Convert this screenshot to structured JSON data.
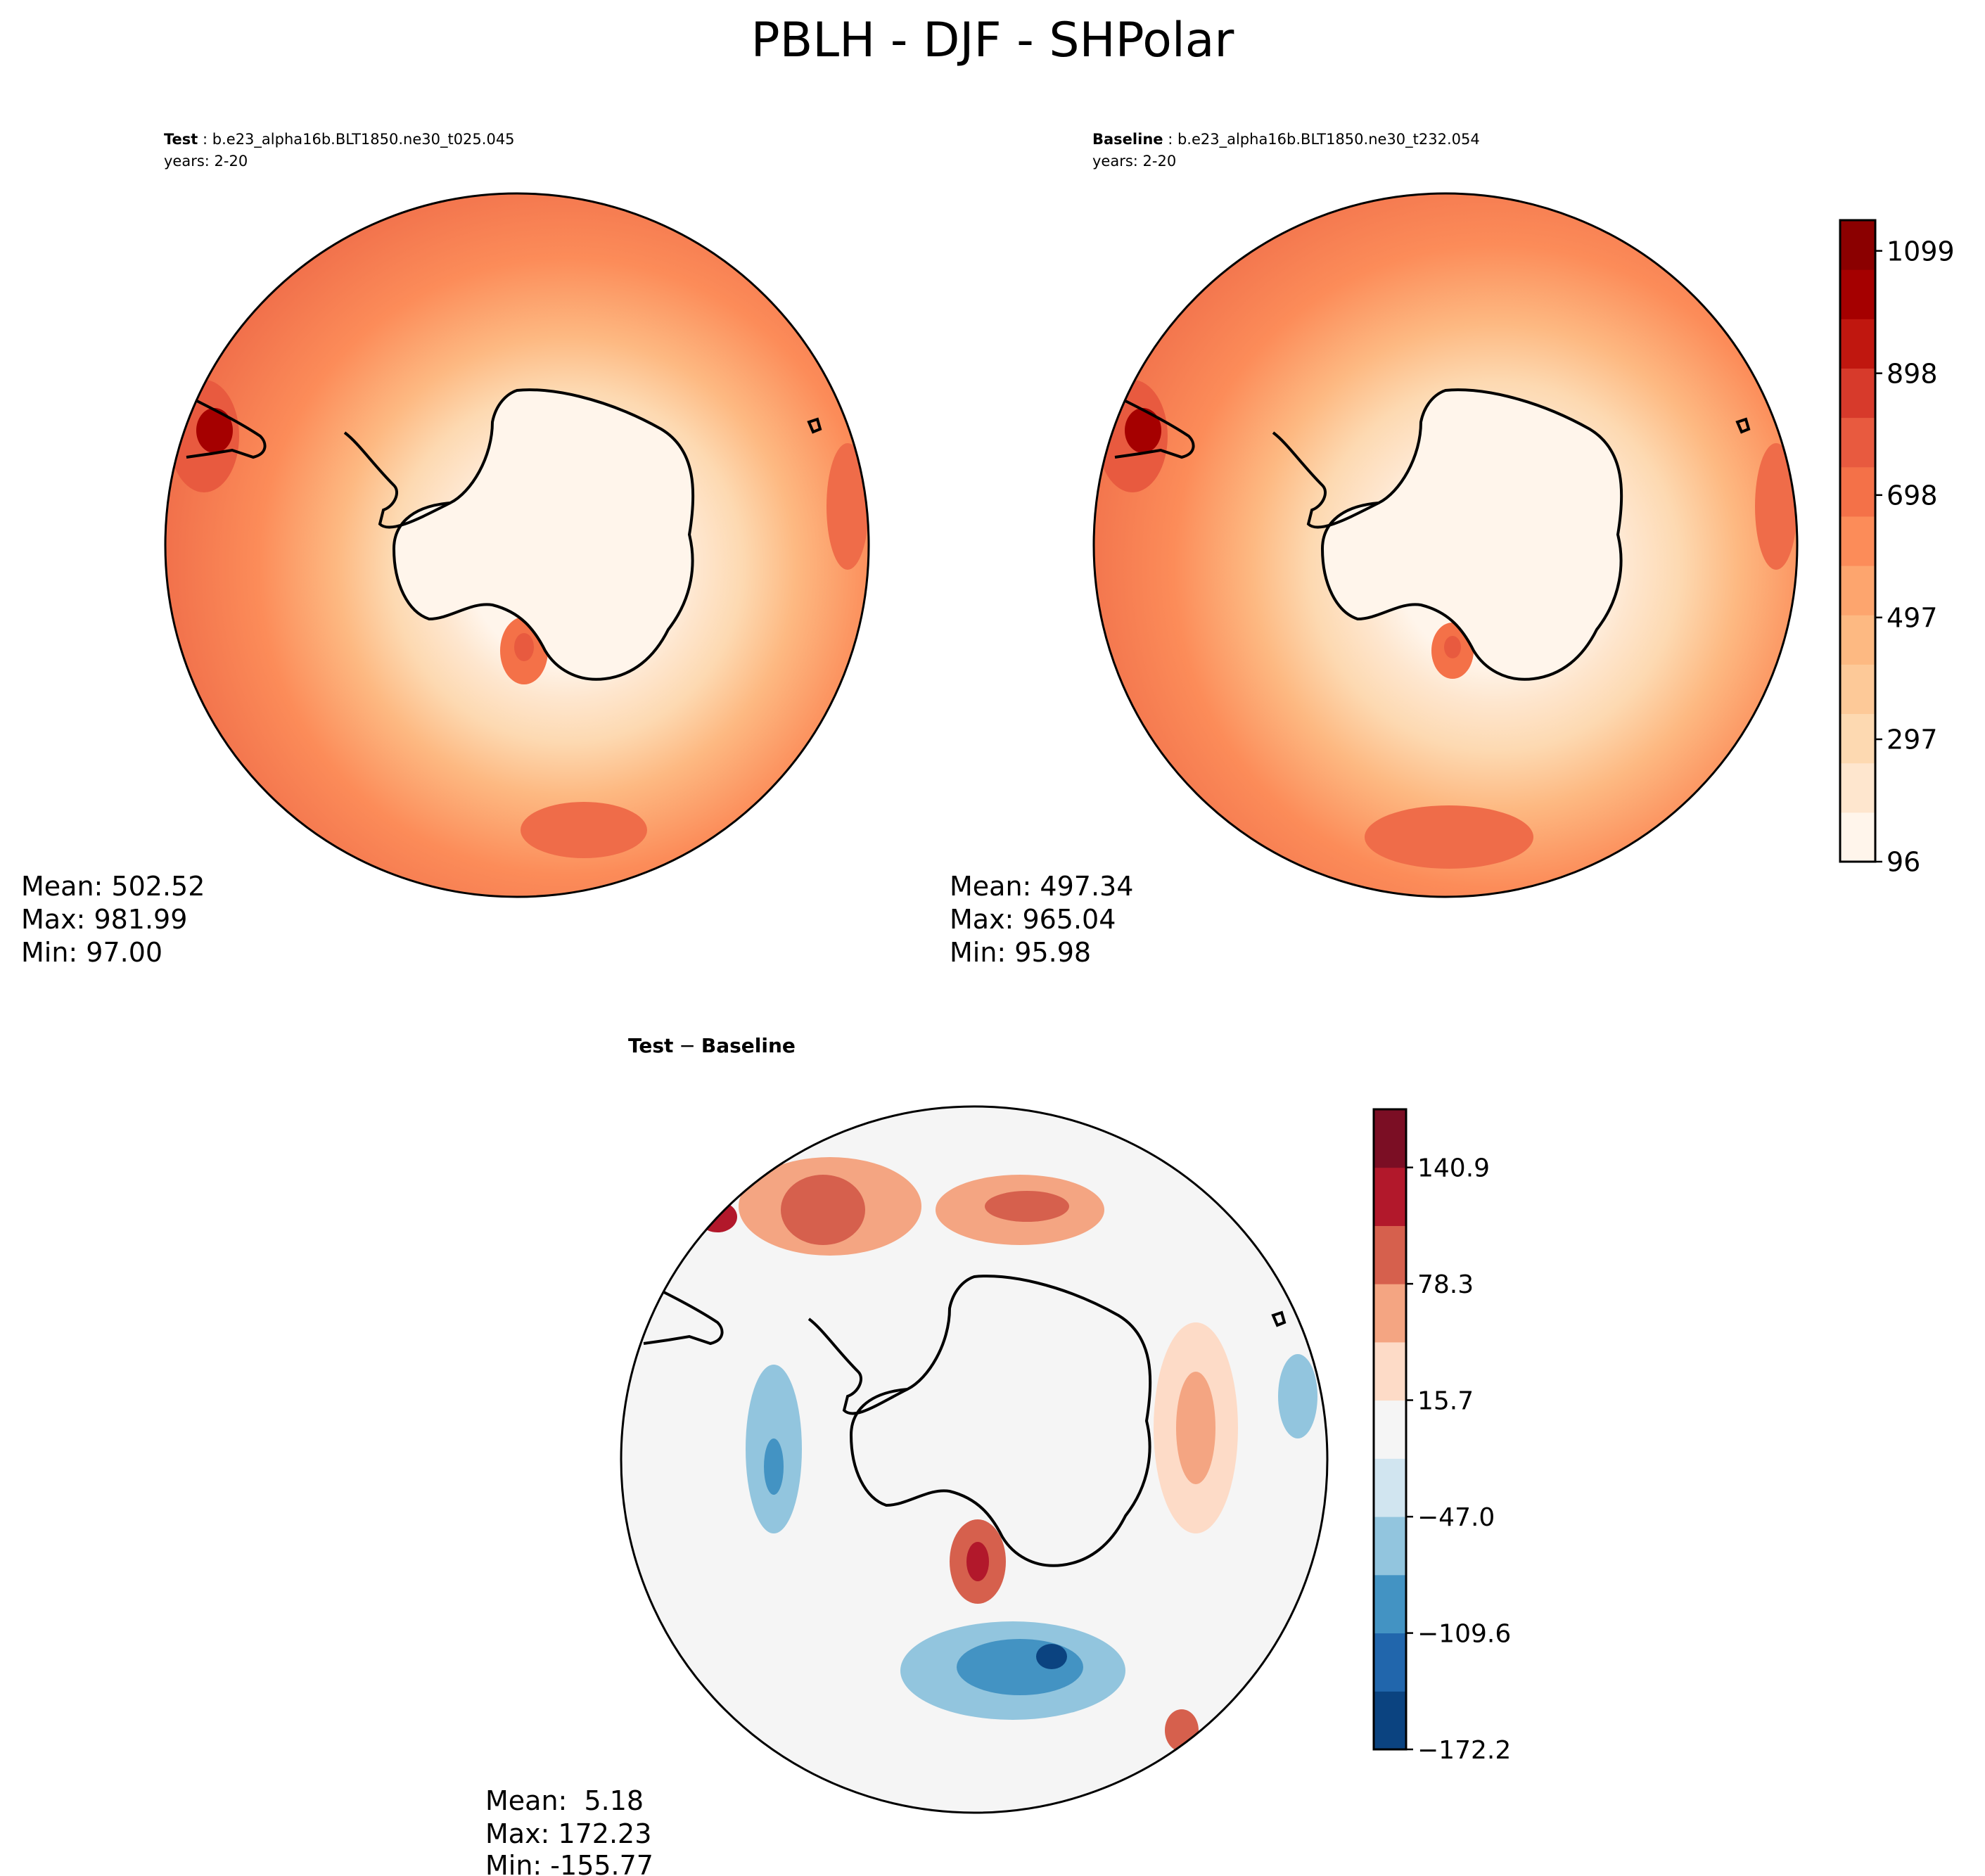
{
  "figure": {
    "title": "PBLH - DJF - SHPolar"
  },
  "chart_data": [
    {
      "type": "heatmap",
      "panel": "test",
      "projection": "south-polar-stereographic",
      "label_bold": "Test",
      "label_case": "b.e23_alpha16b.BLT1850.ne30_t025.045",
      "years": "years: 2-20",
      "stats": [
        "Mean: 502.52",
        "Max: 981.99",
        "Min: 97.00"
      ],
      "mean": 502.52,
      "max": 981.99,
      "min": 97.0,
      "colormap": "OrRd"
    },
    {
      "type": "heatmap",
      "panel": "baseline",
      "projection": "south-polar-stereographic",
      "label_bold": "Baseline",
      "label_case": "b.e23_alpha16b.BLT1850.ne30_t232.054",
      "years": "years: 2-20",
      "stats": [
        "Mean: 497.34",
        "Max: 965.04",
        "Min: 95.98"
      ],
      "mean": 497.34,
      "max": 965.04,
      "min": 95.98,
      "colormap": "OrRd",
      "colorbar": {
        "levels": [
          96,
          146.2,
          196.4,
          246.6,
          297,
          347.2,
          397.4,
          447.6,
          497,
          547.4,
          597.6,
          647.8,
          698,
          748.2,
          798.4,
          848.6,
          898,
          948.8,
          999,
          1049.2,
          1099,
          1149.4
        ],
        "tick_labels": [
          "96",
          "297",
          "497",
          "698",
          "898",
          "1099"
        ],
        "colors": [
          "#fff5eb",
          "#fee6ce",
          "#fdd9b1",
          "#fdc998",
          "#fdb982",
          "#fda56e",
          "#fc8c59",
          "#f47148",
          "#e85a3f",
          "#d73a2b",
          "#c0170f",
          "#a50000",
          "#8b0000"
        ]
      }
    },
    {
      "type": "heatmap",
      "panel": "difference",
      "projection": "south-polar-stereographic",
      "title_left": "Test",
      "title_sep": "−",
      "title_right": "Baseline",
      "stats": [
        "Mean:  5.18",
        "Max: 172.23",
        "Min: -155.77"
      ],
      "mean": 5.18,
      "max": 172.23,
      "min": -155.77,
      "colormap": "RdBu_r",
      "colorbar": {
        "levels": [
          -172.2,
          -140.9,
          -109.6,
          -78.3,
          -47.0,
          -15.7,
          15.7,
          47.0,
          78.3,
          109.6,
          140.9,
          172.2
        ],
        "tick_labels": [
          "−172.2",
          "−109.6",
          "−47.0",
          "15.7",
          "78.3",
          "140.9"
        ],
        "colors": [
          "#0b4380",
          "#2166ac",
          "#4393c3",
          "#92c5de",
          "#d1e5f0",
          "#f5f5f5",
          "#fddbc7",
          "#f4a582",
          "#d6604d",
          "#b2182b",
          "#7b0e24"
        ]
      }
    }
  ]
}
